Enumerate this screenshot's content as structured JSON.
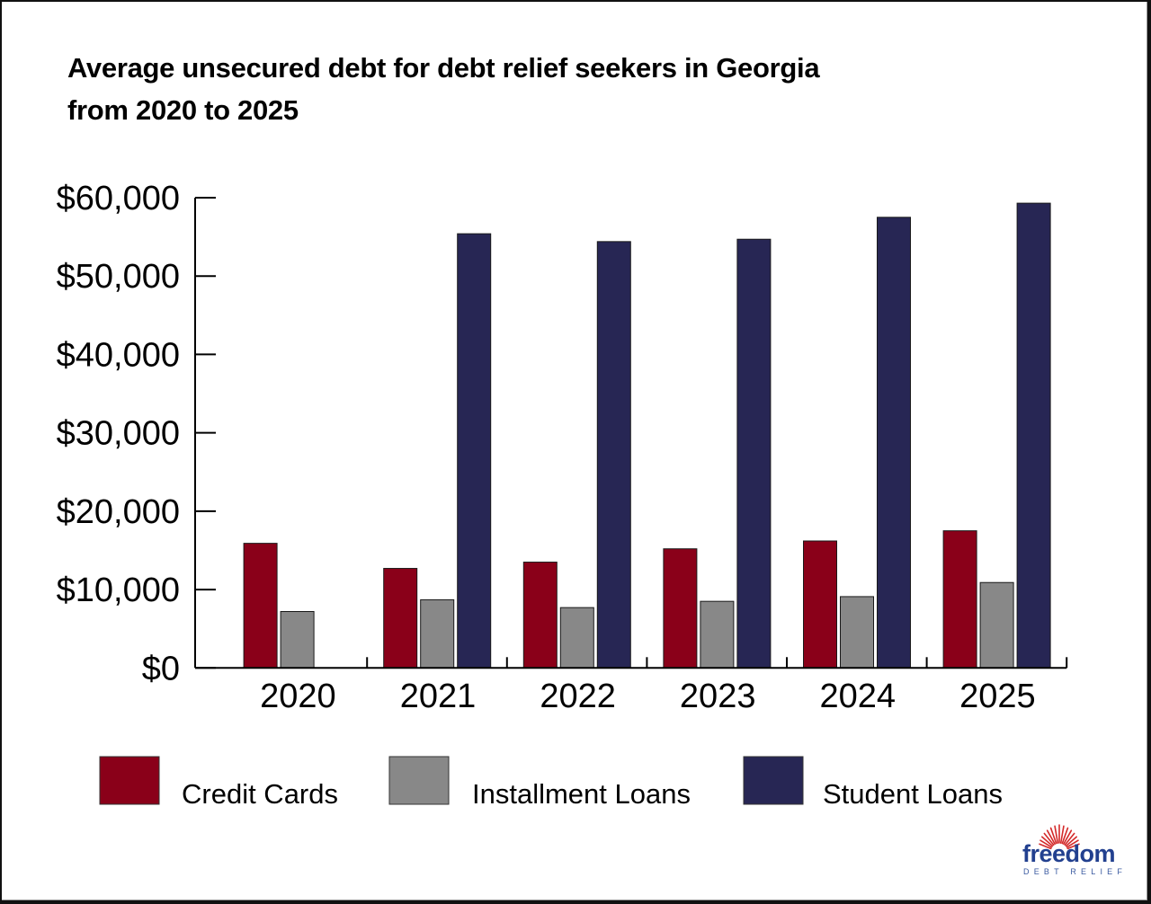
{
  "title": {
    "line1": "Average unsecured debt for debt relief seekers in Georgia",
    "line2": "from 2020 to 2025"
  },
  "logo": {
    "word": "freedom",
    "sub": "DEBT RELIEF",
    "word_color": "#22408f",
    "ray_color": "#d42a2a"
  },
  "colors": {
    "credit_cards": "#8a0019",
    "installment_loans": "#888888",
    "student_loans": "#272654",
    "axis": "#000000"
  },
  "chart_data": {
    "type": "bar",
    "title": "Average unsecured debt for debt relief seekers in Georgia from 2020 to 2025",
    "xlabel": "",
    "ylabel": "",
    "categories": [
      "2020",
      "2021",
      "2022",
      "2023",
      "2024",
      "2025"
    ],
    "series": [
      {
        "name": "Credit Cards",
        "color": "#8a0019",
        "values": [
          15900,
          12700,
          13500,
          15200,
          16200,
          17500
        ]
      },
      {
        "name": "Installment Loans",
        "color": "#888888",
        "values": [
          7200,
          8700,
          7700,
          8500,
          9100,
          10900
        ]
      },
      {
        "name": "Student Loans",
        "color": "#272654",
        "values": [
          null,
          55400,
          54400,
          54700,
          57500,
          59300
        ]
      }
    ],
    "ylim": [
      0,
      60000
    ],
    "yticks": [
      0,
      10000,
      20000,
      30000,
      40000,
      50000,
      60000
    ],
    "ytick_labels": [
      "$0",
      "$10,000",
      "$20,000",
      "$30,000",
      "$40,000",
      "$50,000",
      "$60,000"
    ],
    "grid": false,
    "legend_position": "bottom"
  }
}
